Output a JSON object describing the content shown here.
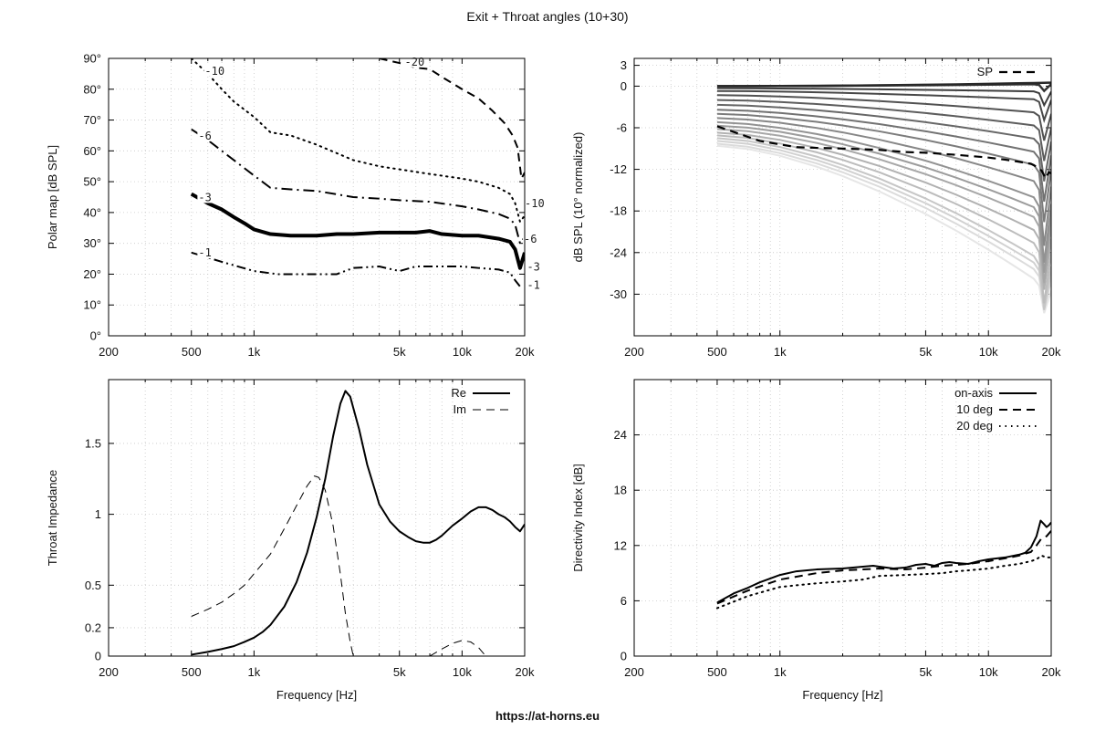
{
  "title": "Exit + Throat angles (10+30)",
  "footer": "https://at-horns.eu",
  "chart_data": [
    {
      "id": "polar",
      "type": "line",
      "xscale": "log",
      "xlim": [
        200,
        20000
      ],
      "ylim": [
        0,
        90
      ],
      "xticks": [
        200,
        500,
        1000,
        5000,
        10000,
        20000
      ],
      "xtick_labels": [
        "200",
        "500",
        "1k",
        "5k",
        "10k",
        "20k"
      ],
      "yticks": [
        0,
        10,
        20,
        30,
        40,
        50,
        60,
        70,
        80,
        90
      ],
      "ytick_labels": [
        "0°",
        "10°",
        "20°",
        "30°",
        "40°",
        "50°",
        "60°",
        "70°",
        "80°",
        "90°"
      ],
      "xlabel": "",
      "ylabel": "Polar map [dB SPL]",
      "grid": true,
      "series": [
        {
          "name": "-1",
          "style": "dash-dot-dot",
          "width": 2,
          "x": [
            500,
            700,
            1000,
            1300,
            2000,
            2500,
            3000,
            4000,
            5000,
            6000,
            8000,
            10000,
            12000,
            15000,
            17000,
            18000,
            19000
          ],
          "y": [
            27,
            24,
            21,
            20,
            20,
            20,
            22,
            22.5,
            21,
            22.5,
            22.5,
            22.5,
            22,
            21.5,
            20.5,
            18,
            16
          ]
        },
        {
          "name": "-3",
          "style": "solid",
          "width": 4,
          "x": [
            500,
            600,
            700,
            800,
            900,
            1000,
            1200,
            1500,
            2000,
            2500,
            3000,
            4000,
            5000,
            6000,
            7000,
            8000,
            10000,
            12000,
            15000,
            17000,
            18000,
            19000,
            20000
          ],
          "y": [
            46,
            43,
            41,
            38.5,
            36.5,
            34.5,
            33,
            32.5,
            32.5,
            33,
            33,
            33.5,
            33.5,
            33.5,
            34,
            33,
            32.5,
            32.5,
            31.5,
            30.5,
            28,
            22,
            27
          ]
        },
        {
          "name": "-6",
          "style": "dash-dot",
          "width": 2,
          "x": [
            500,
            600,
            700,
            800,
            1000,
            1200,
            1500,
            2000,
            3000,
            4000,
            5000,
            7000,
            10000,
            12000,
            15000,
            17000,
            18000,
            19000,
            20000
          ],
          "y": [
            67,
            63.5,
            60,
            57,
            52,
            48,
            47.5,
            47,
            45,
            44.5,
            44,
            43.5,
            42,
            41,
            39.5,
            38,
            36,
            30,
            32
          ]
        },
        {
          "name": "-10",
          "style": "dotted",
          "width": 2,
          "x": [
            500,
            600,
            700,
            800,
            1000,
            1200,
            1500,
            2000,
            3000,
            4000,
            5000,
            7000,
            10000,
            12000,
            15000,
            17000,
            18000,
            19000,
            20000
          ],
          "y": [
            90,
            85,
            80,
            76,
            71,
            66,
            65,
            62,
            57,
            55,
            54,
            52.5,
            51,
            50,
            48,
            46,
            43,
            37,
            39
          ]
        },
        {
          "name": "-20",
          "style": "dashed",
          "width": 2,
          "x": [
            4000,
            5000,
            6000,
            7000,
            8000,
            10000,
            12000,
            14000,
            16000,
            17500,
            18500,
            19300,
            20000
          ],
          "y": [
            90,
            88.5,
            87,
            86.5,
            84,
            80,
            77,
            73,
            69,
            65,
            61,
            51,
            53
          ]
        }
      ],
      "contour_labels": [
        {
          "text": "-10",
          "x": 580,
          "y": 85
        },
        {
          "text": "-6",
          "x": 540,
          "y": 64
        },
        {
          "text": "-3",
          "x": 540,
          "y": 44
        },
        {
          "text": "-1",
          "x": 540,
          "y": 26
        },
        {
          "text": "-20",
          "x": 5300,
          "y": 88
        },
        {
          "text": "-10",
          "x": 20000,
          "y": 42
        },
        {
          "text": "-6",
          "x": 19800,
          "y": 30.5
        },
        {
          "text": "-3",
          "x": 20500,
          "y": 21.5
        },
        {
          "text": "-1",
          "x": 20500,
          "y": 15.5
        }
      ]
    },
    {
      "id": "normalized",
      "type": "line",
      "xscale": "log",
      "xlim": [
        200,
        20000
      ],
      "ylim": [
        -36,
        4
      ],
      "xticks": [
        200,
        500,
        1000,
        5000,
        10000,
        20000
      ],
      "xtick_labels": [
        "200",
        "500",
        "1k",
        "5k",
        "10k",
        "20k"
      ],
      "yticks": [
        -30,
        -24,
        -18,
        -12,
        -6,
        0,
        3
      ],
      "ytick_labels": [
        "-30",
        "-24",
        "-18",
        "-12",
        "-6",
        "0",
        "3"
      ],
      "xlabel": "",
      "ylabel": "dB SPL (10° normalized)",
      "grid": true,
      "legend": {
        "entries": [
          "SP"
        ],
        "placement": "top-right"
      },
      "family": {
        "count": 19,
        "note": "angles 0–90° step 5°",
        "x": [
          500,
          700,
          1000,
          1500,
          2000,
          3000,
          5000,
          7000,
          10000,
          13000,
          15000,
          16500,
          17500,
          18500,
          19300,
          20000
        ],
        "start_levels": [
          0,
          0,
          -0.3,
          -0.7,
          -1.3,
          -2.0,
          -2.7,
          -3.4,
          -4.0,
          -4.6,
          -5.2,
          -5.7,
          -6.2,
          -6.7,
          -7.1,
          -7.5,
          -7.9,
          -8.3,
          -8.6
        ],
        "end_levels": [
          0.8,
          0.3,
          -0.8,
          -2.0,
          -4.0,
          -6.0,
          -8.0,
          -10.0,
          -12.0,
          -14.5,
          -17.0,
          -18.5,
          -20.0,
          -22.0,
          -24.0,
          -26.0,
          -27.0,
          -28.0,
          -29.5
        ],
        "dip_depth": [
          0,
          1,
          2,
          3,
          4,
          5,
          6,
          7,
          8,
          9,
          9,
          9,
          9,
          8,
          8,
          7,
          6,
          5,
          4
        ]
      },
      "series": [
        {
          "name": "SP",
          "style": "dashed",
          "width": 2.2,
          "x": [
            500,
            600,
            700,
            800,
            1000,
            1200,
            1500,
            2000,
            2500,
            3000,
            4000,
            5000,
            7000,
            10000,
            12000,
            14000,
            16000,
            17000,
            18000,
            18800,
            19500,
            20000
          ],
          "y": [
            -5.8,
            -6.6,
            -7.3,
            -7.9,
            -8.4,
            -8.8,
            -8.9,
            -9.0,
            -9.1,
            -9.2,
            -9.5,
            -9.6,
            -9.9,
            -10.3,
            -10.6,
            -10.9,
            -11.2,
            -11.6,
            -12.2,
            -13.3,
            -12.4,
            -12.6
          ]
        }
      ]
    },
    {
      "id": "impedance",
      "type": "line",
      "xscale": "log",
      "xlim": [
        200,
        20000
      ],
      "ylim": [
        0,
        1.95
      ],
      "xticks": [
        200,
        500,
        1000,
        5000,
        10000,
        20000
      ],
      "xtick_labels": [
        "200",
        "500",
        "1k",
        "5k",
        "10k",
        "20k"
      ],
      "yticks": [
        0,
        0.2,
        0.5,
        1,
        1.5
      ],
      "ytick_labels": [
        "0",
        "0.2",
        "0.5",
        "1",
        "1.5"
      ],
      "xlabel": "Frequency [Hz]",
      "ylabel": "Throat Impedance",
      "grid": true,
      "legend": {
        "entries": [
          "Re",
          "Im"
        ],
        "placement": "top-right"
      },
      "series": [
        {
          "name": "Re",
          "style": "solid",
          "width": 2,
          "x": [
            500,
            600,
            700,
            800,
            900,
            1000,
            1100,
            1200,
            1400,
            1600,
            1800,
            2000,
            2200,
            2400,
            2600,
            2750,
            2900,
            3200,
            3500,
            4000,
            4500,
            5000,
            5500,
            6000,
            6500,
            7000,
            7500,
            8000,
            9000,
            10000,
            11000,
            12000,
            13000,
            14000,
            15000,
            16000,
            17000,
            18000,
            19000,
            20000
          ],
          "y": [
            0.01,
            0.03,
            0.05,
            0.07,
            0.1,
            0.13,
            0.17,
            0.22,
            0.35,
            0.52,
            0.73,
            0.98,
            1.25,
            1.55,
            1.78,
            1.87,
            1.83,
            1.6,
            1.35,
            1.07,
            0.95,
            0.88,
            0.84,
            0.81,
            0.8,
            0.8,
            0.82,
            0.85,
            0.92,
            0.97,
            1.02,
            1.05,
            1.05,
            1.03,
            1.0,
            0.98,
            0.95,
            0.91,
            0.88,
            0.93
          ]
        },
        {
          "name": "Im",
          "style": "dashed",
          "width": 1,
          "x": [
            500,
            600,
            700,
            800,
            900,
            1000,
            1200,
            1400,
            1600,
            1800,
            1950,
            2050,
            2200,
            2400,
            2600,
            2750,
            2900,
            3000
          ],
          "y": [
            0.28,
            0.33,
            0.38,
            0.44,
            0.5,
            0.58,
            0.72,
            0.9,
            1.06,
            1.2,
            1.27,
            1.26,
            1.17,
            0.92,
            0.58,
            0.3,
            0.1,
            0.0
          ]
        },
        {
          "name": "Im",
          "style": "dashed",
          "width": 1,
          "x": [
            7000,
            8000,
            9000,
            10000,
            11000,
            12000,
            13000
          ],
          "y": [
            0.0,
            0.05,
            0.09,
            0.11,
            0.1,
            0.06,
            0.0
          ]
        }
      ]
    },
    {
      "id": "directivity",
      "type": "line",
      "xscale": "log",
      "xlim": [
        200,
        20000
      ],
      "ylim": [
        0,
        30
      ],
      "xticks": [
        200,
        500,
        1000,
        5000,
        10000,
        20000
      ],
      "xtick_labels": [
        "200",
        "500",
        "1k",
        "5k",
        "10k",
        "20k"
      ],
      "yticks": [
        0,
        6,
        12,
        18,
        24
      ],
      "ytick_labels": [
        "0",
        "6",
        "12",
        "18",
        "24"
      ],
      "xlabel": "Frequency [Hz]",
      "ylabel": "Directivity Index [dB]",
      "grid": true,
      "legend": {
        "entries": [
          "on-axis",
          "10 deg",
          "20 deg"
        ],
        "placement": "top-right"
      },
      "series": [
        {
          "name": "on-axis",
          "style": "solid",
          "width": 2,
          "x": [
            500,
            600,
            700,
            800,
            1000,
            1200,
            1500,
            2000,
            2500,
            2800,
            3000,
            3500,
            4000,
            4500,
            5000,
            5500,
            6000,
            6500,
            7000,
            8000,
            9000,
            10000,
            12000,
            14000,
            15000,
            16000,
            17000,
            17800,
            18500,
            19000,
            19500,
            20000
          ],
          "y": [
            5.8,
            6.8,
            7.4,
            8.0,
            8.8,
            9.2,
            9.4,
            9.5,
            9.7,
            9.8,
            9.7,
            9.5,
            9.6,
            9.9,
            10.0,
            9.8,
            10.1,
            10.2,
            10.1,
            10.0,
            10.3,
            10.5,
            10.7,
            11.0,
            11.2,
            11.8,
            13.0,
            14.7,
            14.3,
            14.0,
            14.2,
            14.5
          ]
        },
        {
          "name": "10 deg",
          "style": "dashed",
          "width": 2,
          "x": [
            500,
            700,
            1000,
            1500,
            2000,
            2500,
            3000,
            4000,
            5000,
            6000,
            7000,
            8000,
            10000,
            12000,
            14000,
            16000,
            17000,
            18000,
            19000,
            20000
          ],
          "y": [
            5.7,
            7.1,
            8.3,
            9.0,
            9.3,
            9.4,
            9.5,
            9.4,
            9.6,
            9.8,
            9.9,
            10.0,
            10.3,
            10.6,
            10.9,
            11.3,
            12.0,
            12.8,
            13.0,
            13.6
          ]
        },
        {
          "name": "20 deg",
          "style": "dotted",
          "width": 2,
          "x": [
            500,
            700,
            1000,
            1500,
            2000,
            2500,
            3000,
            4000,
            5000,
            6000,
            7000,
            8000,
            10000,
            12000,
            14000,
            16000,
            17000,
            18000,
            19000,
            20000
          ],
          "y": [
            5.2,
            6.5,
            7.5,
            7.9,
            8.1,
            8.3,
            8.7,
            8.8,
            8.9,
            9.0,
            9.2,
            9.3,
            9.5,
            9.8,
            10.0,
            10.3,
            10.5,
            10.9,
            10.7,
            10.7
          ]
        }
      ]
    }
  ]
}
